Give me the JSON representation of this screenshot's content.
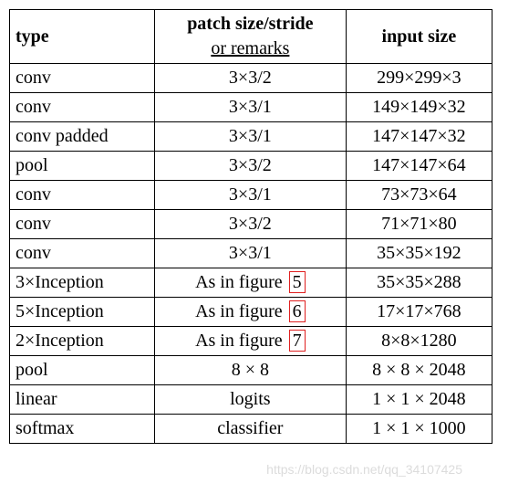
{
  "table": {
    "headers": {
      "type": "type",
      "remarks_line1": "patch size/stride",
      "remarks_line2": "or remarks",
      "inputsize": "input size"
    },
    "rows": [
      {
        "type": "conv",
        "remarks": "3×3/2",
        "fig": null,
        "inputsize": "299×299×3"
      },
      {
        "type": "conv",
        "remarks": "3×3/1",
        "fig": null,
        "inputsize": "149×149×32"
      },
      {
        "type": "conv padded",
        "remarks": "3×3/1",
        "fig": null,
        "inputsize": "147×147×32"
      },
      {
        "type": "pool",
        "remarks": "3×3/2",
        "fig": null,
        "inputsize": "147×147×64"
      },
      {
        "type": "conv",
        "remarks": "3×3/1",
        "fig": null,
        "inputsize": "73×73×64"
      },
      {
        "type": "conv",
        "remarks": "3×3/2",
        "fig": null,
        "inputsize": "71×71×80"
      },
      {
        "type": "conv",
        "remarks": "3×3/1",
        "fig": null,
        "inputsize": "35×35×192"
      },
      {
        "type": "3×Inception",
        "remarks": "As in figure",
        "fig": "5",
        "inputsize": "35×35×288"
      },
      {
        "type": "5×Inception",
        "remarks": "As in figure",
        "fig": "6",
        "inputsize": "17×17×768"
      },
      {
        "type": "2×Inception",
        "remarks": "As in figure",
        "fig": "7",
        "inputsize": "8×8×1280"
      },
      {
        "type": "pool",
        "remarks": "8 × 8",
        "fig": null,
        "inputsize": "8 × 8 × 2048"
      },
      {
        "type": "linear",
        "remarks": "logits",
        "fig": null,
        "inputsize": "1 × 1 × 2048"
      },
      {
        "type": "softmax",
        "remarks": "classifier",
        "fig": null,
        "inputsize": "1 × 1 × 1000"
      }
    ]
  },
  "watermark": "https://blog.csdn.net/qq_34107425"
}
